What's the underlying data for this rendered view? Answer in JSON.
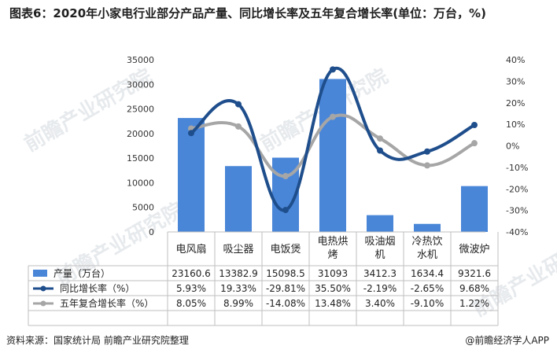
{
  "header": {
    "title": "图表6：2020年小家电行业部分产品产量、同比增长率及五年复合增长率(单位：万台，%)"
  },
  "footer": {
    "source": "资料来源：国家统计局 前瞻产业研究院整理",
    "brand": "@前瞻经济学人APP"
  },
  "watermarks": [
    "前瞻产业研究院",
    "前瞻产业研究院",
    "前瞻产业研究院",
    "前瞻产业研究院"
  ],
  "colors": {
    "bar": "#4a86d8",
    "line1": "#1f4e8c",
    "line2": "#a6a6a6",
    "grid": "#d0d0d0"
  },
  "chart_data": {
    "type": "bar",
    "categories": [
      "电风扇",
      "吸尘器",
      "电饭煲",
      "电热烘烤",
      "吸油烟机",
      "冷热饮水机",
      "微波炉"
    ],
    "category_lines": [
      [
        "电风扇"
      ],
      [
        "吸尘器"
      ],
      [
        "电饭煲"
      ],
      [
        "电热烘",
        "烤"
      ],
      [
        "吸油烟",
        "机"
      ],
      [
        "冷热饮",
        "水机"
      ],
      [
        "微波炉"
      ]
    ],
    "series": [
      {
        "name": "产量（万台）",
        "type": "bar",
        "axis": "left",
        "values": [
          23160.6,
          13382.9,
          15098.5,
          31093,
          3412.3,
          1634.4,
          9321.6
        ],
        "labels": [
          "23160.6",
          "13382.9",
          "15098.5",
          "31093",
          "3412.3",
          "1634.4",
          "9321.6"
        ]
      },
      {
        "name": "同比增长率（%）",
        "type": "line",
        "axis": "right",
        "values": [
          5.93,
          19.33,
          -29.81,
          35.5,
          -2.19,
          -2.65,
          9.68
        ],
        "labels": [
          "5.93%",
          "19.33%",
          "-29.81%",
          "35.50%",
          "-2.19%",
          "-2.65%",
          "9.68%"
        ]
      },
      {
        "name": "五年复合增长率（%）",
        "type": "line",
        "axis": "right",
        "values": [
          8.05,
          8.99,
          -14.08,
          13.48,
          3.4,
          -9.1,
          1.22
        ],
        "labels": [
          "8.05%",
          "8.99%",
          "-14.08%",
          "13.48%",
          "3.40%",
          "-9.10%",
          "1.22%"
        ]
      }
    ],
    "left_axis": {
      "min": 0,
      "max": 35000,
      "ticks": [
        "0",
        "5000",
        "10000",
        "15000",
        "20000",
        "25000",
        "30000",
        "35000"
      ]
    },
    "right_axis": {
      "min": -40,
      "max": 40,
      "ticks": [
        "-40%",
        "-30%",
        "-20%",
        "-10%",
        "0%",
        "10%",
        "20%",
        "30%",
        "40%"
      ]
    },
    "grid": false,
    "legend": "data-table"
  }
}
